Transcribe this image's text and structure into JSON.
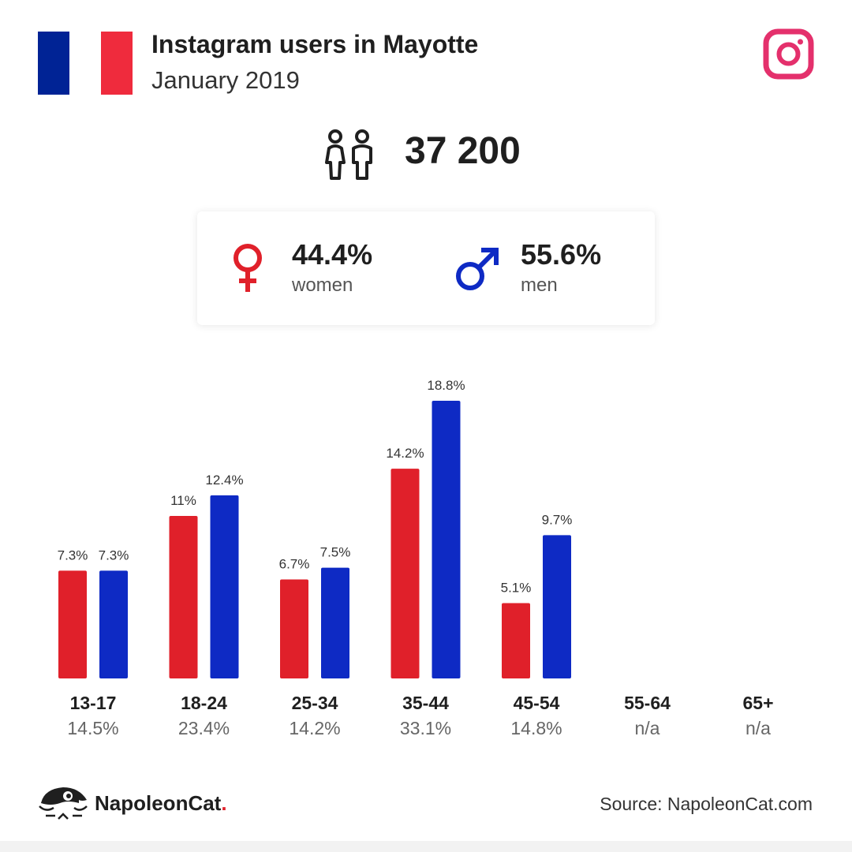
{
  "header": {
    "title": "Instagram users in Mayotte",
    "subtitle": "January 2019"
  },
  "flag": {
    "colors": [
      "#002395",
      "#ffffff",
      "#ef2b3d"
    ]
  },
  "total_users": "37 200",
  "gender": {
    "women": {
      "value": "44.4%",
      "label": "women",
      "color": "#e0202a",
      "icon": "female-symbol-icon"
    },
    "men": {
      "value": "55.6%",
      "label": "men",
      "color": "#0e2ac4",
      "icon": "male-symbol-icon"
    }
  },
  "colors": {
    "women": "#e0202a",
    "men": "#0e2ac4",
    "instagram": "#e4306c"
  },
  "chart_data": {
    "type": "bar",
    "categories": [
      "13-17",
      "18-24",
      "25-34",
      "35-44",
      "45-54",
      "55-64",
      "65+"
    ],
    "category_totals": [
      "14.5%",
      "23.4%",
      "14.2%",
      "33.1%",
      "14.8%",
      "n/a",
      "n/a"
    ],
    "series": [
      {
        "name": "women",
        "values": [
          7.3,
          11,
          6.7,
          14.2,
          5.1,
          null,
          null
        ],
        "labels": [
          "7.3%",
          "11%",
          "6.7%",
          "14.2%",
          "5.1%",
          "",
          ""
        ],
        "color": "#e0202a"
      },
      {
        "name": "men",
        "values": [
          7.3,
          12.4,
          7.5,
          18.8,
          9.7,
          null,
          null
        ],
        "labels": [
          "7.3%",
          "12.4%",
          "7.5%",
          "18.8%",
          "9.7%",
          "",
          ""
        ],
        "color": "#0e2ac4"
      }
    ],
    "ylim": [
      0,
      18.8
    ],
    "grid": false,
    "legend": "none"
  },
  "footer": {
    "brand_name": "NapoleonCat",
    "brand_dot": ".",
    "source": "Source: NapoleonCat.com"
  }
}
